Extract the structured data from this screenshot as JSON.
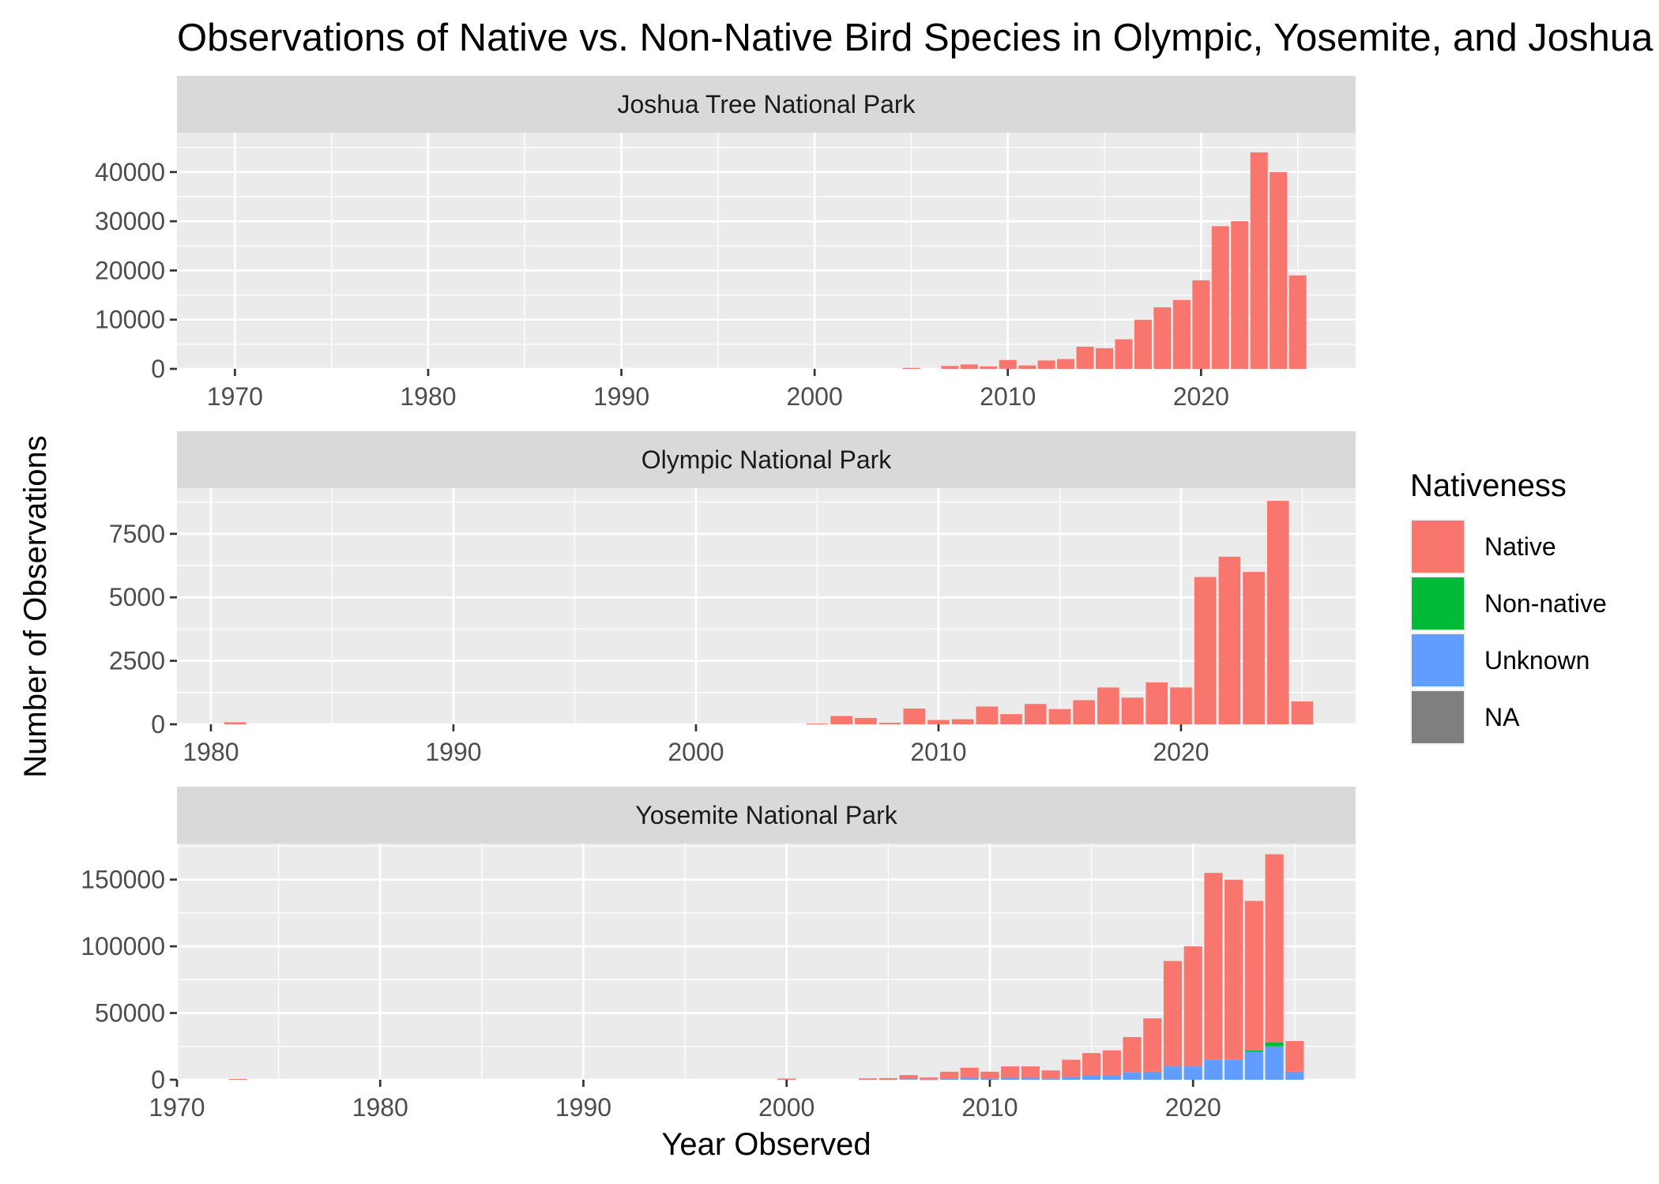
{
  "chart_data": {
    "type": "bar",
    "stacked": true,
    "title": "Observations of Native vs. Non-Native Bird Species in Olympic, Yosemite, and Joshua Tree",
    "xlabel": "Year Observed",
    "ylabel": "Number of Observations",
    "legend": {
      "title": "Nativeness",
      "position": "right",
      "entries": [
        {
          "label": "Native",
          "color": "#F8766D"
        },
        {
          "label": "Non-native",
          "color": "#00BA38"
        },
        {
          "label": "Unknown",
          "color": "#619CFF"
        },
        {
          "label": "NA",
          "color": "#7F7F7F"
        }
      ]
    },
    "grid": true,
    "panels": [
      {
        "name": "Joshua Tree National Park",
        "xlim": [
          1967,
          2028
        ],
        "xticks": [
          1970,
          1980,
          1990,
          2000,
          2010,
          2020
        ],
        "ylim": [
          0,
          48000
        ],
        "yticks": [
          0,
          10000,
          20000,
          30000,
          40000
        ],
        "years": [
          2005,
          2007,
          2008,
          2009,
          2010,
          2011,
          2012,
          2013,
          2014,
          2015,
          2016,
          2017,
          2018,
          2019,
          2020,
          2021,
          2022,
          2023,
          2024,
          2025
        ],
        "native": [
          200,
          600,
          900,
          500,
          1800,
          700,
          1700,
          2000,
          4500,
          4200,
          6000,
          10000,
          12500,
          14000,
          18000,
          29000,
          30000,
          44000,
          40000,
          19000
        ],
        "non_native": [
          0,
          0,
          0,
          0,
          0,
          0,
          0,
          0,
          0,
          0,
          0,
          0,
          0,
          0,
          0,
          0,
          0,
          0,
          0,
          0
        ],
        "unknown": [
          0,
          0,
          0,
          0,
          0,
          0,
          0,
          0,
          0,
          0,
          0,
          0,
          0,
          0,
          0,
          0,
          0,
          0,
          0,
          0
        ]
      },
      {
        "name": "Olympic National Park",
        "xlim": [
          1978.6,
          2027.2
        ],
        "xticks": [
          1980,
          1990,
          2000,
          2010,
          2020
        ],
        "ylim": [
          0,
          9300
        ],
        "yticks": [
          0,
          2500,
          5000,
          7500
        ],
        "years": [
          1981,
          2005,
          2006,
          2007,
          2008,
          2009,
          2010,
          2011,
          2012,
          2013,
          2014,
          2015,
          2016,
          2017,
          2018,
          2019,
          2020,
          2021,
          2022,
          2023,
          2024,
          2025
        ],
        "native": [
          80,
          30,
          330,
          250,
          60,
          620,
          170,
          200,
          700,
          400,
          800,
          600,
          950,
          1450,
          1050,
          1650,
          1450,
          5800,
          6600,
          6000,
          8800,
          900
        ],
        "non_native": [
          0,
          0,
          0,
          0,
          0,
          0,
          0,
          0,
          0,
          0,
          0,
          0,
          0,
          0,
          0,
          0,
          0,
          0,
          0,
          0,
          0,
          0
        ],
        "unknown": [
          0,
          0,
          0,
          0,
          0,
          0,
          0,
          0,
          0,
          0,
          0,
          0,
          0,
          0,
          0,
          0,
          0,
          0,
          0,
          0,
          0,
          0
        ]
      },
      {
        "name": "Yosemite National Park",
        "xlim": [
          1970,
          2028
        ],
        "xticks": [
          1970,
          1980,
          1990,
          2000,
          2010,
          2020
        ],
        "ylim": [
          0,
          177000
        ],
        "yticks": [
          0,
          50000,
          100000,
          150000
        ],
        "years": [
          1973,
          2000,
          2004,
          2005,
          2006,
          2007,
          2008,
          2009,
          2010,
          2011,
          2012,
          2013,
          2014,
          2015,
          2016,
          2017,
          2018,
          2019,
          2020,
          2021,
          2022,
          2023,
          2024,
          2025
        ],
        "native": [
          600,
          900,
          1000,
          1200,
          3000,
          1500,
          5000,
          7500,
          5000,
          8500,
          8500,
          6000,
          13000,
          17000,
          19000,
          26500,
          40000,
          79000,
          90000,
          140000,
          135000,
          112000,
          141000,
          23000
        ],
        "non_native": [
          0,
          0,
          0,
          0,
          0,
          0,
          0,
          0,
          0,
          0,
          0,
          0,
          0,
          0,
          0,
          0,
          0,
          0,
          0,
          0,
          0,
          1000,
          3000,
          0
        ],
        "unknown": [
          0,
          0,
          0,
          0,
          500,
          200,
          1000,
          1500,
          1000,
          1500,
          1500,
          1000,
          2000,
          3000,
          3000,
          5500,
          6000,
          10000,
          10000,
          15000,
          15000,
          21000,
          25000,
          6000
        ]
      }
    ]
  }
}
